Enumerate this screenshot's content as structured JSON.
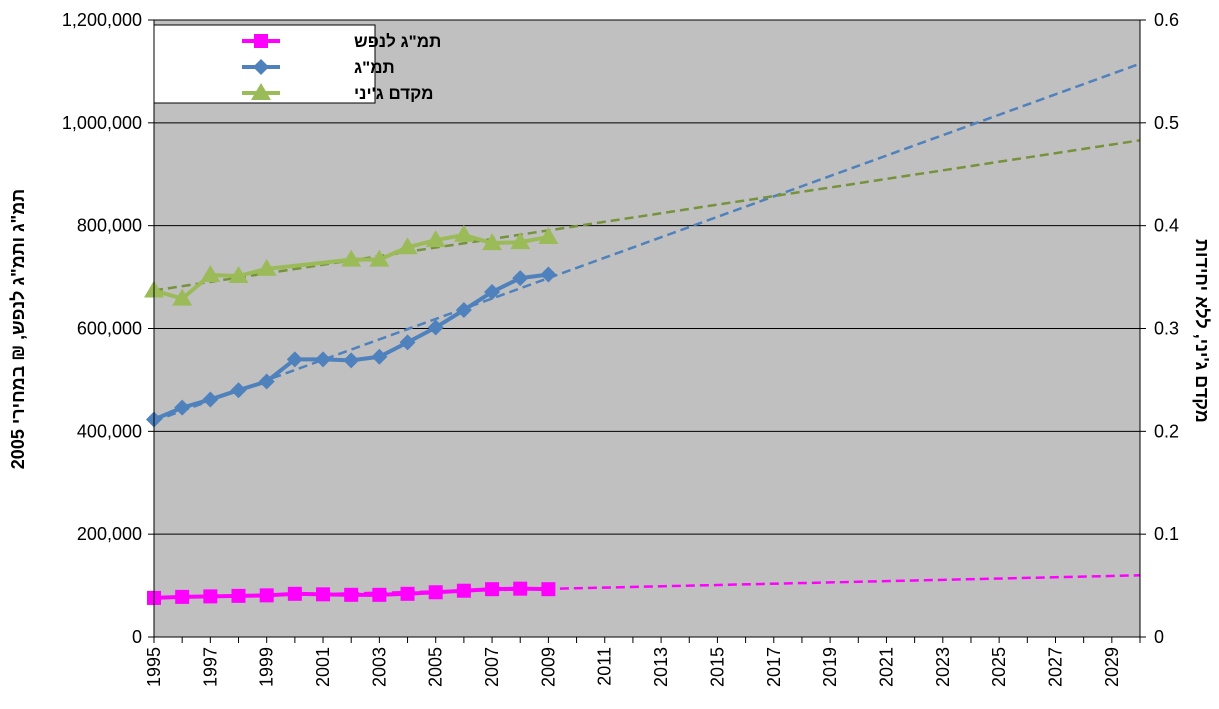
{
  "chart_data": {
    "type": "line",
    "x_range": [
      1995,
      2030
    ],
    "x_tick_labels": [
      "1995",
      "1997",
      "1999",
      "2001",
      "2003",
      "2005",
      "2007",
      "2009",
      "2011",
      "2013",
      "2015",
      "2017",
      "2019",
      "2021",
      "2023",
      "2025",
      "2027",
      "2029"
    ],
    "y_left": {
      "label": "תמ\"ג ותמ\"ג לנפש, ₪ במחירי 2005",
      "range": [
        0,
        1200000
      ],
      "tick_labels": [
        "0",
        "200,000",
        "400,000",
        "600,000",
        "800,000",
        "1,000,000",
        "1,200,000"
      ],
      "tick_values": [
        0,
        200000,
        400000,
        600000,
        800000,
        1000000,
        1200000
      ]
    },
    "y_right": {
      "label": "מקדם ג'יני, ללא יחידות",
      "range": [
        0,
        0.6
      ],
      "tick_labels": [
        "0",
        "0.1",
        "0.2",
        "0.3",
        "0.4",
        "0.5",
        "0.6"
      ],
      "tick_values": [
        0,
        0.1,
        0.2,
        0.3,
        0.4,
        0.5,
        0.6
      ]
    },
    "grid": true,
    "plot_background": "#c0c0c0",
    "legend_position": "top-left",
    "series": [
      {
        "name": "תמ\"ג לנפש",
        "axis": "left",
        "color": "#ff00ff",
        "marker": "square",
        "x": [
          1995,
          1996,
          1997,
          1998,
          1999,
          2000,
          2001,
          2002,
          2003,
          2004,
          2005,
          2006,
          2007,
          2008,
          2009
        ],
        "values": [
          76000,
          78000,
          79000,
          80000,
          81000,
          84000,
          83000,
          82000,
          82000,
          84000,
          87000,
          90000,
          93000,
          94000,
          93000
        ],
        "trend": {
          "color": "#ff00ff",
          "x": [
            1995,
            2030
          ],
          "values": [
            76000,
            120000
          ]
        }
      },
      {
        "name": "תמ\"ג",
        "axis": "left",
        "color": "#4f81bd",
        "marker": "diamond",
        "x": [
          1995,
          1996,
          1997,
          1998,
          1999,
          2000,
          2001,
          2002,
          2003,
          2004,
          2005,
          2006,
          2007,
          2008,
          2009
        ],
        "values": [
          423000,
          446000,
          462000,
          480000,
          497000,
          540000,
          540000,
          538000,
          545000,
          573000,
          602000,
          636000,
          671000,
          698000,
          705000
        ],
        "trend": {
          "color": "#4f81bd",
          "x": [
            1995,
            2030
          ],
          "values": [
            420000,
            1115000
          ]
        }
      },
      {
        "name": "מקדם ג'יני",
        "axis": "right",
        "color": "#9bbb59",
        "marker": "triangle",
        "x": [
          1995,
          1996,
          1997,
          1998,
          1999,
          2002,
          2003,
          2004,
          2005,
          2006,
          2007,
          2008,
          2009
        ],
        "values": [
          0.337,
          0.329,
          0.352,
          0.351,
          0.358,
          0.367,
          0.367,
          0.379,
          0.386,
          0.391,
          0.383,
          0.384,
          0.389
        ],
        "trend": {
          "color": "#76923c",
          "x": [
            1995,
            2030
          ],
          "values": [
            0.337,
            0.483
          ]
        }
      }
    ]
  }
}
